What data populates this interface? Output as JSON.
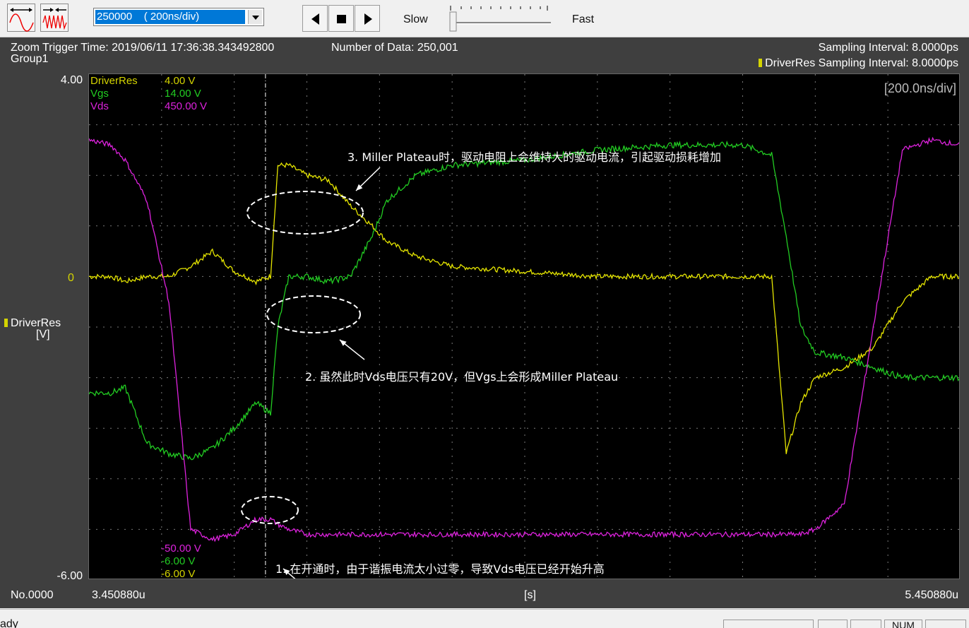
{
  "toolbar": {
    "timebase_value": "250000    ( 200ns/div)",
    "slow_label": "Slow",
    "fast_label": "Fast"
  },
  "header": {
    "zoom_trigger_time": "Zoom Trigger Time: 2019/06/11 17:36:38.343492800",
    "group": "Group1",
    "number_of_data": "Number of Data: 250,001",
    "sampling_interval": "Sampling Interval:  8.0000ps",
    "driverres_sampling_interval": "DriverRes Sampling Interval:  8.0000ps"
  },
  "axis": {
    "y_top": "4.00",
    "y_zero": "0",
    "y_bottom": "-6.00",
    "channel_name": "DriverRes",
    "channel_unit": "[V]",
    "timescale": "[200.0ns/div]",
    "x_start_label": "No.0000",
    "x_start": "3.450880u",
    "x_unit": "[s]",
    "x_end": "5.450880u"
  },
  "legend": {
    "top": [
      {
        "name": "DriverRes",
        "value": "4.00 V",
        "color": "#d4d400"
      },
      {
        "name": "Vgs",
        "value": "14.00 V",
        "color": "#22cc22"
      },
      {
        "name": "Vds",
        "value": "450.00 V",
        "color": "#dd22dd"
      }
    ],
    "bottom": [
      {
        "value": "-50.00 V",
        "color": "#dd22dd"
      },
      {
        "value": "-6.00 V",
        "color": "#22cc22"
      },
      {
        "value": "-6.00 V",
        "color": "#d4d400"
      }
    ]
  },
  "annotations": {
    "a1": "1. 在开通时，由于谐振电流太小过零，导致Vds电压已经开始升高",
    "a2": "2. 虽然此时Vds电压只有20V，但Vgs上会形成Miller Plateau",
    "a3": "3. Miller Plateau时，驱动电阻上会维持大的驱动电流，引起驱动损耗增加"
  },
  "statusbar": {
    "left_text": "ady",
    "num": "NUM"
  },
  "chart_data": {
    "type": "line",
    "title": "",
    "xlabel": "[s]",
    "ylabel": "DriverRes [V]",
    "x_range_us": [
      3.45088,
      5.45088
    ],
    "ylim": [
      -6.0,
      4.0
    ],
    "grid": true,
    "x_time_div": [
      0.0,
      0.3,
      0.5,
      0.8,
      1.1,
      1.4,
      1.7,
      2.0,
      2.3,
      2.5,
      2.6,
      2.75,
      3.0,
      3.3,
      3.6,
      3.9,
      4.1,
      4.5,
      5.0,
      6.0,
      7.0,
      8.0,
      9.0,
      9.4,
      9.6,
      9.8,
      10.0,
      10.4,
      10.8,
      11.2,
      11.6,
      12.0
    ],
    "series": [
      {
        "name": "DriverRes",
        "values": [
          0.0,
          0.0,
          -0.1,
          0.0,
          0.0,
          0.2,
          0.5,
          0.1,
          -0.1,
          0.0,
          2.2,
          2.2,
          2.0,
          1.9,
          1.4,
          1.0,
          0.7,
          0.4,
          0.2,
          0.1,
          0.0,
          0.0,
          0.0,
          0.0,
          -3.5,
          -2.5,
          -2.0,
          -1.8,
          -1.4,
          -0.5,
          0.0,
          0.0
        ]
      },
      {
        "name": "Vgs",
        "values": [
          -2.3,
          -2.3,
          -2.2,
          -3.3,
          -3.5,
          -3.6,
          -3.4,
          -3.0,
          -2.5,
          -2.7,
          -1.0,
          0.0,
          0.0,
          -0.1,
          0.0,
          0.8,
          1.5,
          2.0,
          2.2,
          2.3,
          2.5,
          2.6,
          2.6,
          2.4,
          0.8,
          -1.0,
          -1.5,
          -1.6,
          -1.8,
          -2.0,
          -2.0,
          -2.0
        ]
      },
      {
        "name": "Vds",
        "values": [
          2.7,
          2.6,
          2.3,
          1.5,
          -0.5,
          -5.0,
          -5.2,
          -5.1,
          -4.8,
          -4.8,
          -4.9,
          -5.0,
          -5.1,
          -5.1,
          -5.1,
          -5.1,
          -5.1,
          -5.1,
          -5.1,
          -5.1,
          -5.1,
          -5.1,
          -5.1,
          -5.1,
          -5.1,
          -5.1,
          -5.0,
          -4.5,
          -1.0,
          2.5,
          2.7,
          2.6
        ]
      }
    ]
  }
}
